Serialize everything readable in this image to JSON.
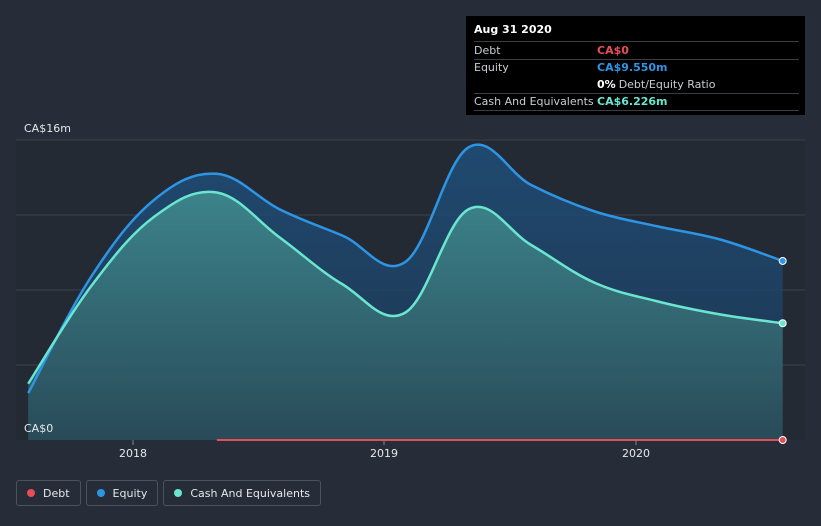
{
  "chart_data": {
    "type": "area",
    "y_axis": {
      "top_label": "CA$16m",
      "bottom_label": "CA$0",
      "ylim": [
        0,
        16
      ]
    },
    "x_axis": {
      "ticks": [
        "2018",
        "2019",
        "2020"
      ]
    },
    "series": [
      {
        "name": "Debt",
        "color": "#e64e55",
        "points": [
          {
            "x": "2018-05",
            "y": 0
          },
          {
            "x": "2020-08",
            "y": 0
          }
        ]
      },
      {
        "name": "Equity",
        "color": "#2e95e4",
        "points": [
          {
            "x": "2017-08",
            "y": 2.5
          },
          {
            "x": "2017-11",
            "y": 8.7
          },
          {
            "x": "2018-02",
            "y": 12.8
          },
          {
            "x": "2018-05",
            "y": 14.2
          },
          {
            "x": "2018-08",
            "y": 12.3
          },
          {
            "x": "2018-11",
            "y": 10.9
          },
          {
            "x": "2019-02",
            "y": 9.5
          },
          {
            "x": "2019-05",
            "y": 15.6
          },
          {
            "x": "2019-08",
            "y": 13.6
          },
          {
            "x": "2019-11",
            "y": 12.2
          },
          {
            "x": "2020-02",
            "y": 11.4
          },
          {
            "x": "2020-05",
            "y": 10.7
          },
          {
            "x": "2020-08",
            "y": 9.55
          }
        ]
      },
      {
        "name": "Cash And Equivalents",
        "color": "#6ae6d0",
        "points": [
          {
            "x": "2017-08",
            "y": 3.0
          },
          {
            "x": "2017-11",
            "y": 8.2
          },
          {
            "x": "2018-02",
            "y": 11.9
          },
          {
            "x": "2018-05",
            "y": 13.2
          },
          {
            "x": "2018-08",
            "y": 10.8
          },
          {
            "x": "2018-11",
            "y": 8.3
          },
          {
            "x": "2019-02",
            "y": 6.8
          },
          {
            "x": "2019-05",
            "y": 12.3
          },
          {
            "x": "2019-08",
            "y": 10.4
          },
          {
            "x": "2019-11",
            "y": 8.4
          },
          {
            "x": "2020-02",
            "y": 7.4
          },
          {
            "x": "2020-05",
            "y": 6.7
          },
          {
            "x": "2020-08",
            "y": 6.226
          }
        ]
      }
    ],
    "grid": true
  },
  "tooltip": {
    "date": "Aug 31 2020",
    "rows": [
      {
        "label": "Debt",
        "value": "CA$0",
        "color": "#e64e55"
      },
      {
        "label": "Equity",
        "value": "CA$9.550m",
        "color": "#2e95e4"
      },
      {
        "label": "",
        "value": "0%",
        "extra": "Debt/Equity Ratio",
        "color": "#ffffff"
      },
      {
        "label": "Cash And Equivalents",
        "value": "CA$6.226m",
        "color": "#6ae6d0"
      }
    ]
  },
  "legend": [
    {
      "label": "Debt",
      "color": "#e64e55"
    },
    {
      "label": "Equity",
      "color": "#2e95e4"
    },
    {
      "label": "Cash And Equivalents",
      "color": "#6ae6d0"
    }
  ]
}
